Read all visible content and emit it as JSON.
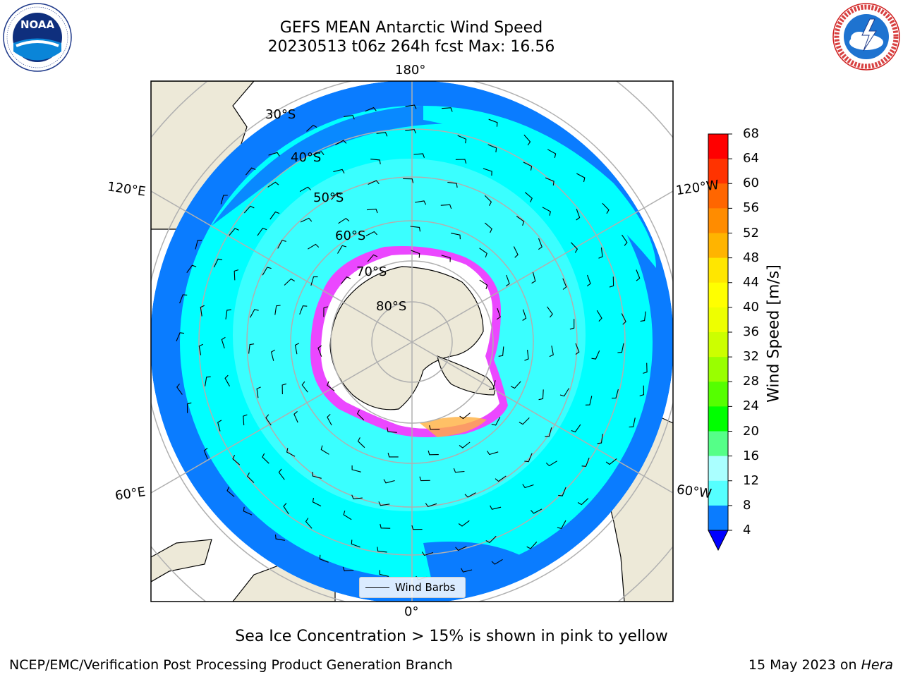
{
  "title": {
    "line1": "GEFS MEAN Antarctic Wind Speed",
    "line2": "20230513 t06z 264h fcst   Max: 16.56"
  },
  "logos": {
    "left": {
      "name": "noaa-logo",
      "text": "NOAA",
      "ring_text": "NATIONAL OCEANIC AND ATMOSPHERIC ADMINISTRATION · U.S. DEPARTMENT OF COMMERCE"
    },
    "right": {
      "name": "nws-logo",
      "ring_text": "NATIONAL WEATHER SERVICE"
    }
  },
  "map": {
    "projection": "south-polar-stereographic",
    "longitude_labels": {
      "top": "180°",
      "bottom": "0°",
      "upper_left": "120°E",
      "lower_left": "60°E",
      "upper_right": "120°W",
      "lower_right": "60°W"
    },
    "latitude_labels": [
      "30°S",
      "40°S",
      "50°S",
      "60°S",
      "70°S",
      "80°S"
    ],
    "legend_label": "Wind Barbs",
    "colors": {
      "land": "#ede9d8",
      "ocean_low": "#0a7cff",
      "ocean_mid": "#00ffff",
      "ocean_high": "#4dffff",
      "sea_ice_edge": "#ff33ff",
      "sea_ice_fill": "#ffffff",
      "grid": "#b0b0b0"
    }
  },
  "colorbar": {
    "title": "Wind Speed [m/s]",
    "ticks": [
      "68",
      "64",
      "60",
      "56",
      "52",
      "48",
      "44",
      "40",
      "36",
      "32",
      "28",
      "24",
      "20",
      "16",
      "12",
      "8",
      "4"
    ],
    "colors": [
      "#ff0000",
      "#ff3300",
      "#ff6600",
      "#ff8c00",
      "#ffb400",
      "#ffe600",
      "#ffff00",
      "#eeff00",
      "#ccff00",
      "#99ff00",
      "#55ff00",
      "#00ff00",
      "#55ff88",
      "#aaffff",
      "#55ffff",
      "#00ffff",
      "#0a7cff"
    ],
    "under_color": "#0000ff"
  },
  "caption": "Sea Ice Concentration > 15% is shown in pink to yellow",
  "footer": {
    "left": "NCEP/EMC/Verification Post Processing Product Generation Branch",
    "right_prefix": "15 May 2023 on ",
    "right_host": "Hera"
  }
}
